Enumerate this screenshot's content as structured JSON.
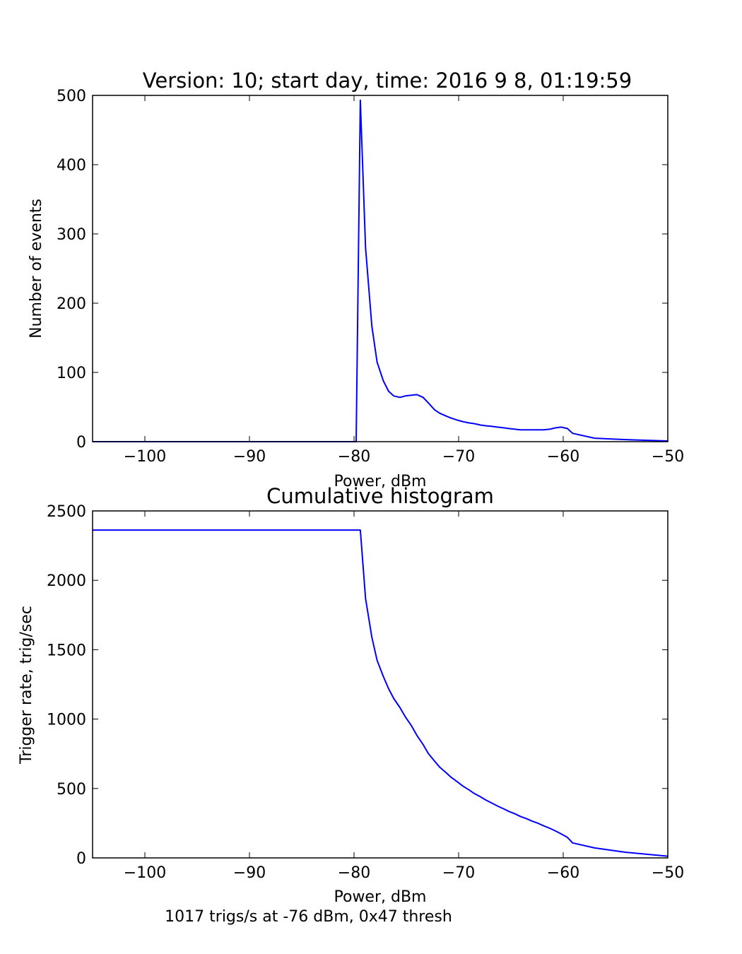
{
  "colors": {
    "line": "#0000ff",
    "axes": "#000000",
    "background": "#ffffff"
  },
  "footer_note": "1017 trigs/s at -76 dBm, 0x47 thresh",
  "chart_data": [
    {
      "type": "line",
      "title": "Version: 10; start day, time: 2016 9 8, 01:19:59",
      "xlabel": "Power, dBm",
      "ylabel": "Number of events",
      "xlim": [
        -105,
        -50
      ],
      "ylim": [
        0,
        500
      ],
      "xticks": [
        -100,
        -90,
        -80,
        -70,
        -60,
        -50
      ],
      "xtick_labels": [
        "−100",
        "−90",
        "−80",
        "−70",
        "−60",
        "−50"
      ],
      "yticks": [
        0,
        100,
        200,
        300,
        400,
        500
      ],
      "ytick_labels": [
        "0",
        "100",
        "200",
        "300",
        "400",
        "500"
      ],
      "grid": false,
      "series": [
        {
          "x": [
            -105,
            -79.8,
            -79.4,
            -78.9,
            -78.3,
            -77.8,
            -77.2,
            -76.7,
            -76.2,
            -75.6,
            -75.1,
            -74.5,
            -74.0,
            -73.4,
            -72.9,
            -72.3,
            -71.8,
            -71.2,
            -70.7,
            -70.1,
            -69.6,
            -69.0,
            -68.5,
            -67.9,
            -67.4,
            -66.8,
            -66.3,
            -65.7,
            -65.2,
            -64.6,
            -64.1,
            -63.5,
            -63.0,
            -62.4,
            -61.9,
            -61.3,
            -60.7,
            -60.2,
            -59.6,
            -59.1,
            -57.0,
            -54.0,
            -50.0
          ],
          "y": [
            0,
            0,
            493,
            280,
            167,
            115,
            88,
            73,
            66,
            64,
            66,
            67,
            68,
            64,
            56,
            46,
            41,
            37,
            34,
            31,
            29,
            27,
            26,
            24,
            23,
            22,
            21,
            20,
            19,
            18,
            17,
            17,
            17,
            17,
            17,
            18,
            20,
            21,
            19,
            12,
            5,
            3,
            1
          ]
        }
      ]
    },
    {
      "type": "line",
      "title": "Cumulative histogram",
      "xlabel": "Power, dBm",
      "ylabel": "Trigger rate, trig/sec",
      "xlim": [
        -105,
        -50
      ],
      "ylim": [
        0,
        2500
      ],
      "xticks": [
        -100,
        -90,
        -80,
        -70,
        -60,
        -50
      ],
      "xtick_labels": [
        "−100",
        "−90",
        "−80",
        "−70",
        "−60",
        "−50"
      ],
      "yticks": [
        0,
        500,
        1000,
        1500,
        2000,
        2500
      ],
      "ytick_labels": [
        "0",
        "500",
        "1000",
        "1500",
        "2000",
        "2500"
      ],
      "grid": false,
      "series": [
        {
          "x": [
            -105,
            -79.4,
            -78.9,
            -78.3,
            -77.8,
            -77.2,
            -76.7,
            -76.2,
            -75.6,
            -75.1,
            -74.5,
            -74.0,
            -73.4,
            -72.9,
            -72.3,
            -71.8,
            -71.2,
            -70.7,
            -70.1,
            -69.6,
            -69.0,
            -68.5,
            -67.9,
            -67.4,
            -66.8,
            -66.3,
            -65.7,
            -65.2,
            -64.6,
            -64.1,
            -63.5,
            -63.0,
            -62.4,
            -61.9,
            -61.3,
            -60.7,
            -60.2,
            -59.6,
            -59.1,
            -57.0,
            -54.0,
            -50.0
          ],
          "y": [
            2362,
            2362,
            1869,
            1590,
            1424,
            1308,
            1220,
            1148,
            1082,
            1017,
            951,
            884,
            817,
            752,
            697,
            653,
            614,
            580,
            547,
            518,
            490,
            464,
            440,
            417,
            394,
            374,
            354,
            335,
            317,
            299,
            282,
            266,
            249,
            232,
            214,
            193,
            173,
            148,
            108,
            72,
            40,
            12
          ]
        }
      ]
    }
  ]
}
